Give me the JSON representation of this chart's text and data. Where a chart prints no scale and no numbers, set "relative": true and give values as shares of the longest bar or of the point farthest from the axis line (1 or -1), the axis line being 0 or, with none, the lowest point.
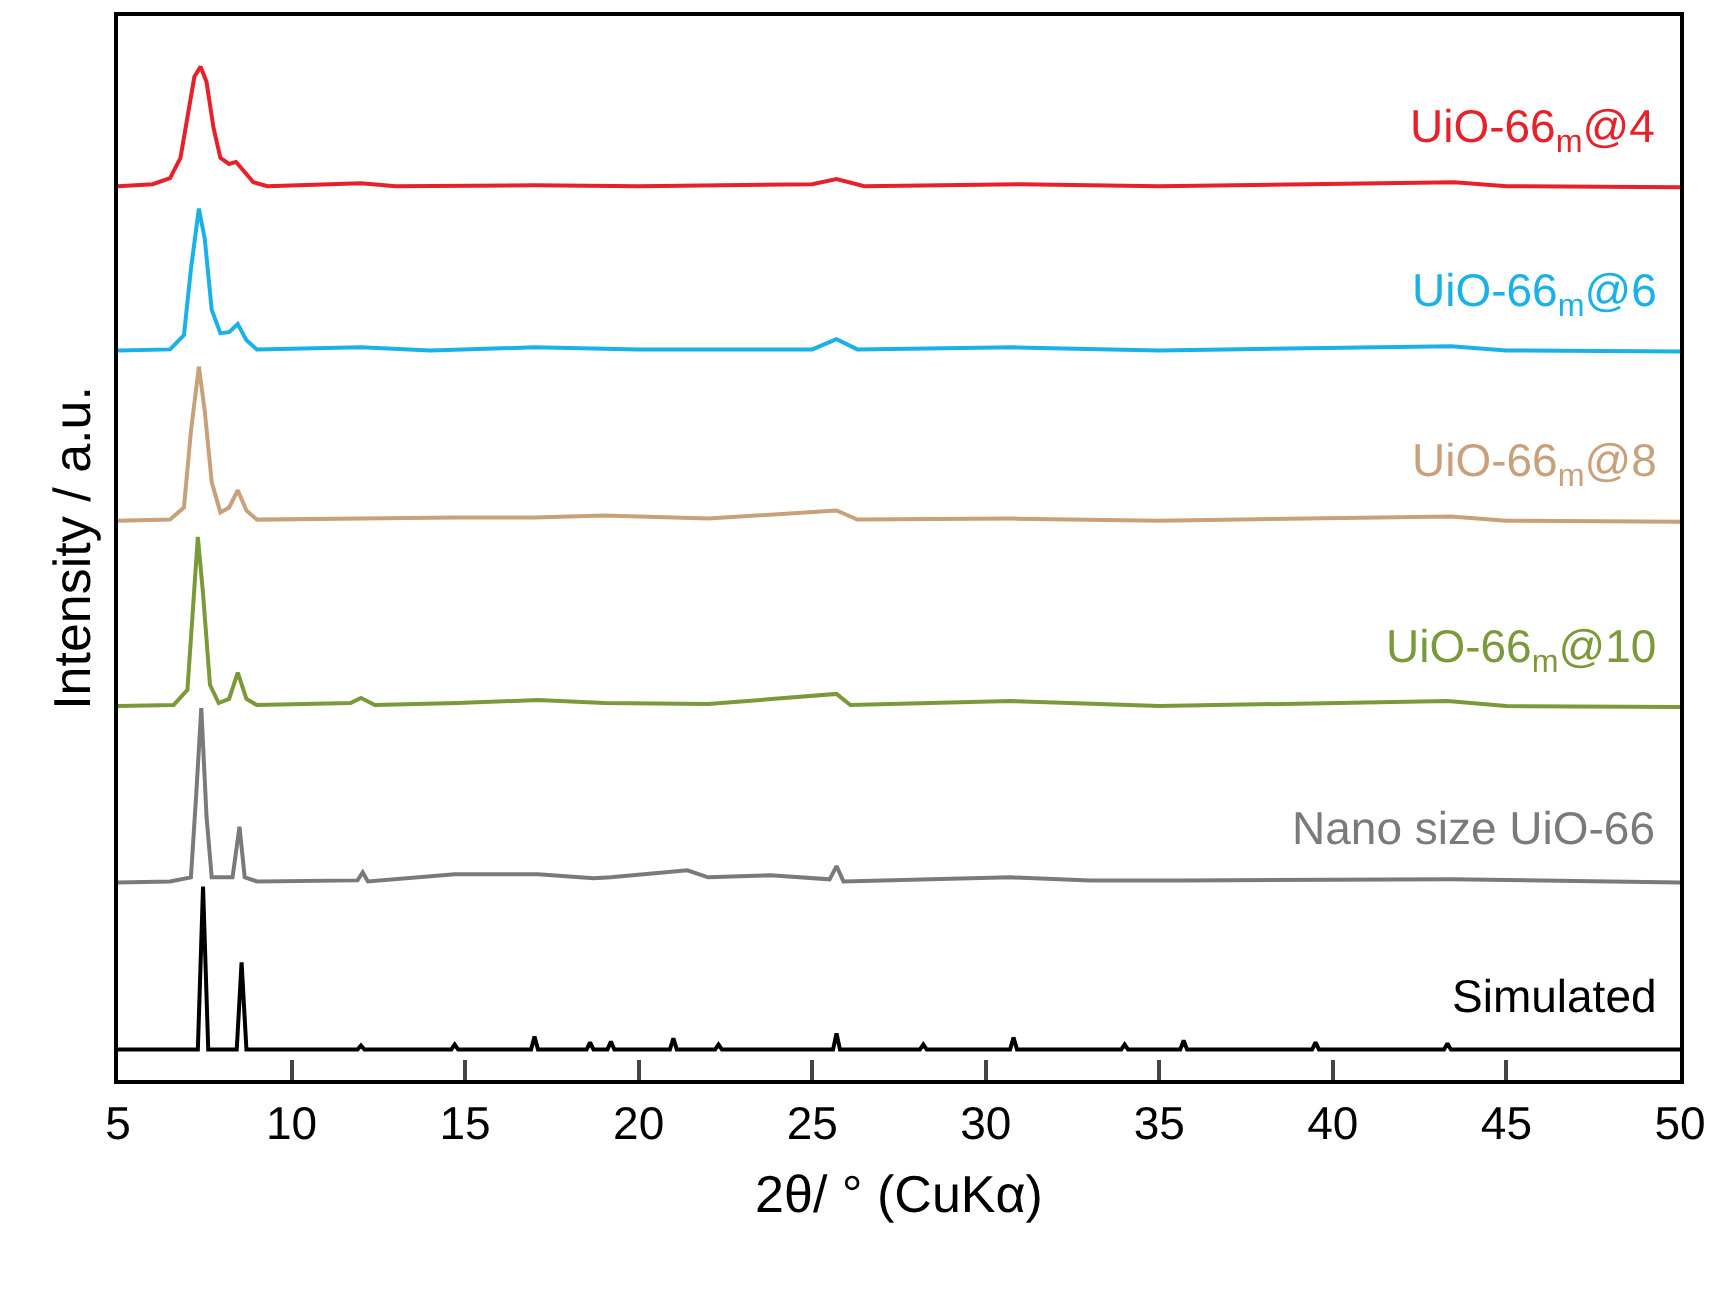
{
  "chart_data": {
    "type": "line",
    "relative": true,
    "xlabel": "2θ/ ° (CuKα)",
    "ylabel": "Intensity / a.u.",
    "xlim": [
      5,
      50
    ],
    "xticks": [
      5,
      10,
      15,
      20,
      25,
      30,
      35,
      40,
      45,
      50
    ],
    "grid": false,
    "legend": false,
    "marker": "none",
    "line_style": "solid",
    "series": [
      {
        "name": "UiO-66$_{m}$@4",
        "color": "#e8202a",
        "x": [
          5,
          6.0,
          6.5,
          6.8,
          7.0,
          7.2,
          7.38,
          7.55,
          7.75,
          7.95,
          8.2,
          8.4,
          8.65,
          8.9,
          9.3,
          12,
          13,
          17,
          20,
          25.0,
          25.7,
          26.5,
          31,
          35,
          43.5,
          45,
          50
        ],
        "values": [
          0.882,
          0.884,
          0.89,
          0.91,
          0.95,
          0.99,
          1.0,
          0.985,
          0.94,
          0.91,
          0.904,
          0.906,
          0.896,
          0.886,
          0.882,
          0.885,
          0.882,
          0.883,
          0.882,
          0.884,
          0.889,
          0.882,
          0.884,
          0.882,
          0.886,
          0.882,
          0.881
        ]
      },
      {
        "name": "UiO-66$_{m}$@6",
        "color": "#1ab0e8",
        "x": [
          5,
          6.5,
          6.9,
          7.1,
          7.33,
          7.5,
          7.7,
          7.95,
          8.2,
          8.45,
          8.7,
          9,
          12,
          14,
          17,
          20,
          25,
          25.7,
          26.3,
          30.8,
          35,
          43.4,
          45,
          50
        ],
        "values": [
          0.72,
          0.721,
          0.735,
          0.8,
          0.86,
          0.83,
          0.76,
          0.737,
          0.738,
          0.746,
          0.73,
          0.721,
          0.723,
          0.72,
          0.723,
          0.721,
          0.721,
          0.731,
          0.721,
          0.723,
          0.72,
          0.724,
          0.72,
          0.719
        ]
      },
      {
        "name": "UiO-66$_{m}$@8",
        "color": "#c8a07a",
        "x": [
          5,
          6.5,
          6.9,
          7.1,
          7.33,
          7.5,
          7.7,
          7.95,
          8.2,
          8.45,
          8.7,
          9,
          12,
          14.7,
          17,
          19,
          22,
          25.7,
          26.3,
          30.8,
          35,
          43.4,
          45,
          50
        ],
        "values": [
          0.552,
          0.553,
          0.565,
          0.64,
          0.704,
          0.66,
          0.59,
          0.56,
          0.565,
          0.582,
          0.562,
          0.553,
          0.554,
          0.555,
          0.555,
          0.557,
          0.554,
          0.562,
          0.553,
          0.554,
          0.552,
          0.556,
          0.552,
          0.551
        ]
      },
      {
        "name": "UiO-66$_{m}$@10",
        "color": "#7a9a3a",
        "x": [
          5,
          6.6,
          7.0,
          7.15,
          7.3,
          7.45,
          7.65,
          7.9,
          8.2,
          8.45,
          8.7,
          9,
          11.7,
          12.0,
          12.4,
          14.8,
          17.1,
          19,
          22,
          25.7,
          26.1,
          30.7,
          35,
          43.3,
          45,
          50
        ],
        "values": [
          0.369,
          0.37,
          0.385,
          0.46,
          0.536,
          0.48,
          0.39,
          0.372,
          0.376,
          0.402,
          0.376,
          0.37,
          0.372,
          0.377,
          0.37,
          0.372,
          0.375,
          0.372,
          0.371,
          0.381,
          0.37,
          0.374,
          0.369,
          0.374,
          0.369,
          0.368
        ]
      },
      {
        "name": "Nano size UiO-66",
        "color": "#7a7a7a",
        "x": [
          5,
          6.5,
          7.1,
          7.25,
          7.4,
          7.55,
          7.7,
          8.3,
          8.5,
          8.65,
          9,
          11.9,
          12.05,
          12.2,
          14.7,
          17.1,
          18.7,
          19.2,
          21.4,
          22,
          23.8,
          25.5,
          25.7,
          25.9,
          30.7,
          33,
          35.7,
          43.4,
          50
        ],
        "values": [
          0.195,
          0.196,
          0.2,
          0.28,
          0.367,
          0.26,
          0.2,
          0.2,
          0.25,
          0.2,
          0.196,
          0.197,
          0.205,
          0.196,
          0.203,
          0.203,
          0.199,
          0.2,
          0.207,
          0.2,
          0.202,
          0.198,
          0.211,
          0.196,
          0.2,
          0.197,
          0.197,
          0.198,
          0.195
        ]
      },
      {
        "name": "Simulated",
        "color": "#000000",
        "x": [
          5,
          7.3,
          7.45,
          7.6,
          8.42,
          8.56,
          8.7,
          11.9,
          12.0,
          12.1,
          14.6,
          14.7,
          14.8,
          16.9,
          17.0,
          17.1,
          18.5,
          18.6,
          18.7,
          19.1,
          19.2,
          19.3,
          20.9,
          21.0,
          21.1,
          22.2,
          22.3,
          22.4,
          25.6,
          25.7,
          25.8,
          28.1,
          28.2,
          28.3,
          30.7,
          30.8,
          30.9,
          33.9,
          34.0,
          34.1,
          35.6,
          35.7,
          35.8,
          39.4,
          39.5,
          39.6,
          43.2,
          43.3,
          43.4,
          50
        ],
        "values": [
          0.03,
          0.03,
          0.191,
          0.03,
          0.03,
          0.116,
          0.03,
          0.03,
          0.034,
          0.03,
          0.03,
          0.035,
          0.03,
          0.03,
          0.043,
          0.03,
          0.03,
          0.037,
          0.03,
          0.03,
          0.038,
          0.03,
          0.03,
          0.041,
          0.03,
          0.03,
          0.035,
          0.03,
          0.03,
          0.046,
          0.03,
          0.03,
          0.035,
          0.03,
          0.03,
          0.042,
          0.03,
          0.03,
          0.035,
          0.03,
          0.03,
          0.039,
          0.03,
          0.03,
          0.037,
          0.03,
          0.03,
          0.036,
          0.03,
          0.03
        ]
      }
    ]
  }
}
